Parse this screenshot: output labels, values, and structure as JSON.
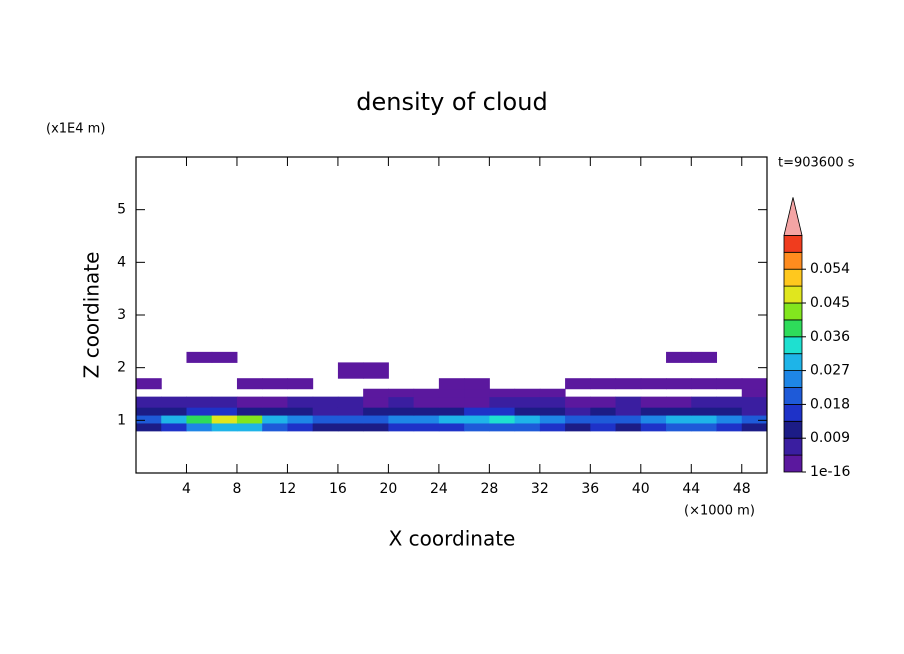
{
  "chart_data": {
    "type": "contour",
    "title": "density of cloud",
    "x_label": "X coordinate",
    "y_label": "Z coordinate",
    "x_unit": "(×1000 m)",
    "y_unit": "(x1E4 m)",
    "annotation": "t=903600 s",
    "xlim": [
      0,
      50
    ],
    "ylim": [
      0,
      6
    ],
    "xticks": [
      4,
      8,
      12,
      16,
      20,
      24,
      28,
      32,
      36,
      40,
      44,
      48
    ],
    "yticks": [
      1,
      2,
      3,
      4,
      5
    ],
    "x_edges": [
      0,
      2,
      4,
      6,
      8,
      10,
      12,
      14,
      16,
      18,
      20,
      22,
      24,
      26,
      28,
      30,
      32,
      34,
      36,
      38,
      40,
      42,
      44,
      46,
      48,
      50
    ],
    "z_edges": [
      0.8,
      0.95,
      1.1,
      1.25,
      1.45,
      1.6,
      1.8,
      2.1,
      2.3
    ],
    "values": [
      [
        0.012,
        0.015,
        0.025,
        0.03,
        0.03,
        0.02,
        0.015,
        0.012,
        0.01,
        0.012,
        0.015,
        0.015,
        0.015,
        0.018,
        0.02,
        0.02,
        0.015,
        0.012,
        0.015,
        0.012,
        0.015,
        0.02,
        0.02,
        0.015,
        0.012
      ],
      [
        0.02,
        0.03,
        0.04,
        0.045,
        0.042,
        0.03,
        0.025,
        0.02,
        0.018,
        0.02,
        0.025,
        0.025,
        0.028,
        0.03,
        0.032,
        0.03,
        0.025,
        0.02,
        0.022,
        0.02,
        0.025,
        0.028,
        0.03,
        0.025,
        0.02
      ],
      [
        0.01,
        0.012,
        0.015,
        0.015,
        0.012,
        0.01,
        0.01,
        0.008,
        0.008,
        0.01,
        0.01,
        0.012,
        0.012,
        0.015,
        0.015,
        0.012,
        0.01,
        0.008,
        0.01,
        0.008,
        0.01,
        0.012,
        0.012,
        0.01,
        0.008
      ],
      [
        0.005,
        0.005,
        0.006,
        0.005,
        0.004,
        0.004,
        0.005,
        0.006,
        0.005,
        0.004,
        0.005,
        0.004,
        0.003,
        0.004,
        0.005,
        0.006,
        0.005,
        0.004,
        0.004,
        0.005,
        0.004,
        0.004,
        0.005,
        0.006,
        0.005
      ],
      [
        null,
        null,
        null,
        null,
        null,
        null,
        null,
        null,
        null,
        0.002,
        0.003,
        0.003,
        0.003,
        0.002,
        0.003,
        0.002,
        0.002,
        null,
        null,
        null,
        null,
        null,
        null,
        null,
        0.002
      ],
      [
        0.002,
        null,
        null,
        null,
        0.002,
        0.002,
        0.002,
        null,
        null,
        null,
        null,
        null,
        0.002,
        0.002,
        null,
        null,
        null,
        0.002,
        0.002,
        0.002,
        0.002,
        0.002,
        0.002,
        0.002,
        0.002
      ],
      [
        null,
        null,
        null,
        null,
        null,
        null,
        null,
        null,
        0.002,
        0.002,
        null,
        null,
        null,
        null,
        null,
        null,
        null,
        null,
        null,
        null,
        null,
        null,
        null,
        null,
        null
      ],
      [
        null,
        null,
        0.002,
        0.002,
        null,
        null,
        null,
        null,
        null,
        null,
        null,
        null,
        null,
        null,
        null,
        null,
        null,
        null,
        null,
        null,
        null,
        0.002,
        0.002,
        null,
        null
      ]
    ],
    "levels": [
      1e-16,
      0.0045,
      0.009,
      0.0135,
      0.018,
      0.0225,
      0.027,
      0.0315,
      0.036,
      0.0405,
      0.045,
      0.0495,
      0.054,
      0.0585,
      0.063
    ],
    "colors": [
      "#5b189e",
      "#3a1ea0",
      "#1c1c86",
      "#1e32c8",
      "#1e5ad8",
      "#1e86e6",
      "#1eb4e8",
      "#1ee0d0",
      "#2edc5a",
      "#82e61e",
      "#e0e61e",
      "#ffc81e",
      "#ff8c1e",
      "#f03c1e"
    ],
    "over_color": "#f4a4a4",
    "colorbar_ticks": [
      1e-16,
      0.009,
      0.018,
      0.027,
      0.036,
      0.045,
      0.054
    ]
  }
}
